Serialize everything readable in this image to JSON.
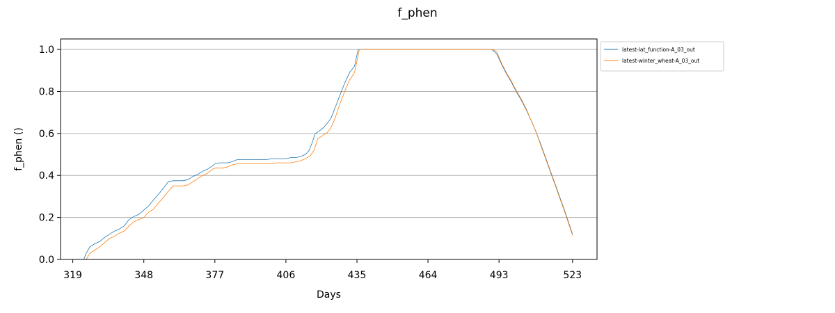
{
  "chart_data": {
    "type": "line",
    "title": "f_phen",
    "xlabel": "Days",
    "ylabel": "f_phen ()",
    "xlim": [
      314,
      533
    ],
    "ylim": [
      0,
      1.05
    ],
    "xticks": [
      319,
      348,
      377,
      406,
      435,
      464,
      493,
      523
    ],
    "yticks": [
      0.0,
      0.2,
      0.4,
      0.6,
      0.8,
      1.0
    ],
    "ytick_labels": [
      "0.0",
      "0.2",
      "0.4",
      "0.6",
      "0.8",
      "1.0"
    ],
    "grid": "horizontal",
    "legend_position": "outside top-right",
    "series": [
      {
        "name": "latest-lat_function-A_03_out",
        "color": "#1f77b4",
        "x": [
          323.5,
          324.5,
          326,
          328,
          330,
          332,
          334,
          336,
          338,
          340,
          342,
          344,
          346,
          348,
          350,
          352,
          354,
          356,
          358,
          360,
          362,
          364,
          366,
          368,
          370,
          372,
          374,
          376,
          377,
          378.5,
          380,
          382,
          384,
          386,
          388,
          390,
          392,
          394,
          396,
          398,
          400,
          402,
          404,
          406,
          408,
          410,
          412,
          414,
          415.5,
          416.5,
          418,
          420,
          421.5,
          423,
          424.5,
          426,
          428,
          430,
          432,
          434,
          435.5,
          440,
          460,
          480,
          490,
          492,
          494,
          496,
          498,
          500,
          502,
          504,
          506,
          508,
          510,
          512,
          514,
          516,
          518,
          520,
          522,
          523
        ],
        "y": [
          0.0,
          0.03,
          0.06,
          0.075,
          0.085,
          0.105,
          0.12,
          0.135,
          0.145,
          0.16,
          0.19,
          0.205,
          0.215,
          0.235,
          0.255,
          0.285,
          0.31,
          0.34,
          0.37,
          0.375,
          0.375,
          0.375,
          0.38,
          0.395,
          0.405,
          0.42,
          0.43,
          0.445,
          0.455,
          0.46,
          0.46,
          0.46,
          0.465,
          0.475,
          0.475,
          0.475,
          0.475,
          0.475,
          0.475,
          0.475,
          0.48,
          0.48,
          0.48,
          0.48,
          0.485,
          0.485,
          0.49,
          0.5,
          0.52,
          0.55,
          0.6,
          0.615,
          0.63,
          0.65,
          0.675,
          0.72,
          0.78,
          0.84,
          0.89,
          0.92,
          1.0,
          1.0,
          1.0,
          1.0,
          1.0,
          0.98,
          0.93,
          0.885,
          0.845,
          0.8,
          0.76,
          0.715,
          0.665,
          0.61,
          0.55,
          0.485,
          0.42,
          0.355,
          0.29,
          0.225,
          0.155,
          0.12
        ]
      },
      {
        "name": "latest-winter_wheat-A_03_out",
        "color": "#ff7f0e",
        "x": [
          324.5,
          326,
          328,
          330,
          332,
          334,
          336,
          338,
          340,
          342,
          344,
          346,
          348,
          350,
          352,
          354,
          356,
          358,
          360,
          362,
          364,
          366,
          368,
          370,
          372,
          374,
          376,
          377,
          378.5,
          380,
          382,
          384,
          386,
          388,
          390,
          392,
          394,
          396,
          398,
          400,
          402,
          404,
          406,
          408,
          410,
          412,
          414,
          416,
          417.5,
          419,
          421,
          423,
          424.5,
          426,
          428,
          430,
          432,
          434,
          436,
          440,
          460,
          480,
          490.5,
          492,
          494,
          496,
          498,
          500,
          502,
          504,
          506,
          508,
          510,
          512,
          514,
          516,
          518,
          520,
          522,
          523
        ],
        "y": [
          0.0,
          0.03,
          0.045,
          0.06,
          0.08,
          0.1,
          0.11,
          0.125,
          0.135,
          0.16,
          0.18,
          0.19,
          0.2,
          0.225,
          0.24,
          0.27,
          0.295,
          0.325,
          0.35,
          0.35,
          0.35,
          0.355,
          0.37,
          0.385,
          0.4,
          0.41,
          0.43,
          0.435,
          0.435,
          0.435,
          0.44,
          0.45,
          0.455,
          0.455,
          0.455,
          0.455,
          0.455,
          0.455,
          0.455,
          0.455,
          0.46,
          0.46,
          0.46,
          0.46,
          0.465,
          0.47,
          0.48,
          0.495,
          0.52,
          0.575,
          0.59,
          0.605,
          0.63,
          0.67,
          0.74,
          0.8,
          0.855,
          0.89,
          1.0,
          1.0,
          1.0,
          1.0,
          1.0,
          0.99,
          0.935,
          0.89,
          0.85,
          0.805,
          0.765,
          0.72,
          0.665,
          0.61,
          0.545,
          0.48,
          0.415,
          0.35,
          0.285,
          0.22,
          0.15,
          0.115
        ]
      }
    ]
  }
}
